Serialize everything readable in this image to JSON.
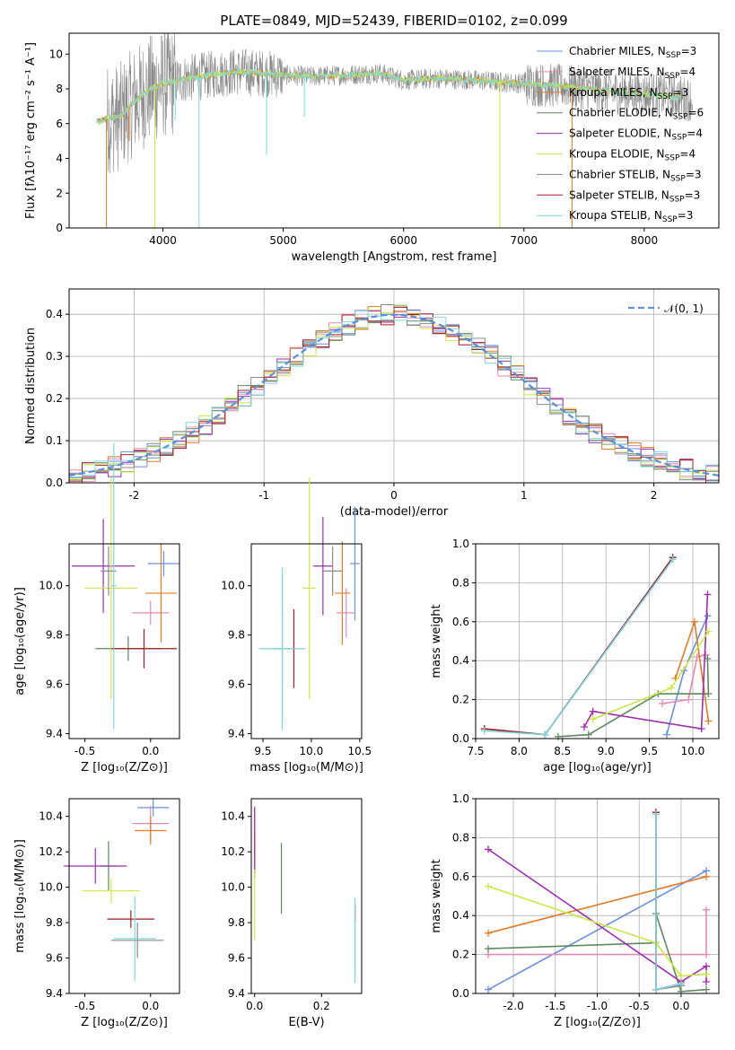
{
  "colors": {
    "Chabrier MILES": "#6a8fdc",
    "Salpeter MILES": "#e889b6",
    "Kroupa MILES": "#e07b28",
    "Chabrier ELODIE": "#5f8a5f",
    "Salpeter ELODIE": "#9a2fb0",
    "Kroupa ELODIE": "#cbe846",
    "Chabrier STELIB": "#8a8a8a",
    "Salpeter STELIB": "#a61d24",
    "Kroupa STELIB": "#7fd7dc",
    "gaussian": "#5b8fdc",
    "grid": "#b0b0b0"
  },
  "chart_data": [
    {
      "id": "spectrum",
      "type": "line",
      "title": "PLATE=0849, MJD=52439, FIBERID=0102, z=0.099",
      "xlabel": "wavelength [Angstrom, rest frame]",
      "ylabel": "Flux [fλ10⁻¹⁷ erg cm⁻² s⁻¹ A⁻¹]",
      "xlim": [
        3220,
        8620
      ],
      "ylim": [
        0,
        11.2
      ],
      "xticks": [
        4000,
        5000,
        6000,
        7000,
        8000
      ],
      "yticks": [
        0,
        2,
        4,
        6,
        8,
        10
      ],
      "grid": false,
      "legend": "right",
      "legend_entries": [
        {
          "label": "Chabrier MILES, N",
          "sub": "SSP",
          "suffix": "=3"
        },
        {
          "label": "Salpeter MILES, N",
          "sub": "SSP",
          "suffix": "=4"
        },
        {
          "label": "Kroupa MILES, N",
          "sub": "SSP",
          "suffix": "=3"
        },
        {
          "label": "Chabrier ELODIE, N",
          "sub": "SSP",
          "suffix": "=6"
        },
        {
          "label": "Salpeter ELODIE, N",
          "sub": "SSP",
          "suffix": "=4"
        },
        {
          "label": "Kroupa ELODIE, N",
          "sub": "SSP",
          "suffix": "=4"
        },
        {
          "label": "Chabrier STELIB, N",
          "sub": "SSP",
          "suffix": "=3"
        },
        {
          "label": "Salpeter STELIB, N",
          "sub": "SSP",
          "suffix": "=3"
        },
        {
          "label": "Kroupa STELIB, N",
          "sub": "SSP",
          "suffix": "=3"
        }
      ],
      "data_trend": {
        "x": [
          3450,
          3550,
          3650,
          3750,
          3900,
          4000,
          4200,
          4400,
          4600,
          4800,
          5000,
          5200,
          5500,
          5800,
          6000,
          6300,
          6600,
          7000,
          7400,
          7800,
          8200,
          8400
        ],
        "y": [
          6.1,
          6.3,
          6.4,
          7.2,
          8.0,
          8.3,
          8.6,
          8.8,
          9.0,
          8.9,
          8.8,
          8.7,
          8.8,
          8.9,
          8.5,
          8.6,
          8.5,
          8.3,
          8.1,
          7.8,
          7.6,
          7.4
        ]
      },
      "absorption_lines": [
        {
          "x": 3530,
          "color": "Kroupa MILES",
          "depth": 0
        },
        {
          "x": 3720,
          "color": "Kroupa MILES",
          "depth": 5.0
        },
        {
          "x": 3933,
          "color": "Kroupa ELODIE",
          "depth": 0
        },
        {
          "x": 4102,
          "color": "Kroupa STELIB",
          "depth": 6.2
        },
        {
          "x": 4300,
          "color": "Kroupa STELIB",
          "depth": 0
        },
        {
          "x": 4861,
          "color": "Kroupa STELIB",
          "depth": 4.2
        },
        {
          "x": 5175,
          "color": "Kroupa STELIB",
          "depth": 6.4
        },
        {
          "x": 6800,
          "color": "Kroupa ELODIE",
          "depth": 0
        },
        {
          "x": 7400,
          "color": "Kroupa MILES",
          "depth": 0
        }
      ]
    },
    {
      "id": "residuals",
      "type": "histogram",
      "xlabel": "(data-model)/error",
      "ylabel": "Normed distribution",
      "xlim": [
        -2.5,
        2.5
      ],
      "ylim": [
        0,
        0.46
      ],
      "xticks": [
        -2,
        -1,
        0,
        1,
        2
      ],
      "yticks": [
        0.0,
        0.1,
        0.2,
        0.3,
        0.4
      ],
      "grid": true,
      "legend": "top-right",
      "legend_label": "𝒩(0, 1)",
      "bin_width": 0.1,
      "series": [
        "Chabrier MILES",
        "Salpeter MILES",
        "Kroupa MILES",
        "Chabrier ELODIE",
        "Salpeter ELODIE",
        "Kroupa ELODIE",
        "Chabrier STELIB",
        "Salpeter STELIB",
        "Kroupa STELIB"
      ]
    },
    {
      "id": "age_vs_Z",
      "type": "errorbar",
      "xlabel": "Z [log₁₀(Z/Z⊙)]",
      "ylabel": "age  [log₁₀(age/yr)]",
      "xlim": [
        -0.62,
        0.22
      ],
      "ylim": [
        9.38,
        10.17
      ],
      "xticks": [
        -0.5,
        0.0
      ],
      "yticks": [
        9.4,
        9.6,
        9.8,
        10.0
      ],
      "points": [
        {
          "s": "Chabrier MILES",
          "x": 0.1,
          "xe": 0.12,
          "y": 10.09,
          "ye": 0.05
        },
        {
          "s": "Salpeter MILES",
          "x": 0.0,
          "xe": 0.14,
          "y": 9.89,
          "ye": 0.05
        },
        {
          "s": "Kroupa MILES",
          "x": 0.08,
          "xe": 0.12,
          "y": 9.97,
          "ye": 0.2
        },
        {
          "s": "Chabrier ELODIE",
          "x": -0.17,
          "xe": 0.25,
          "y": 9.745,
          "ye": 0.05
        },
        {
          "s": "Salpeter ELODIE",
          "x": -0.36,
          "xe": 0.24,
          "y": 10.08,
          "ye": 0.19
        },
        {
          "s": "Kroupa ELODIE",
          "x": -0.3,
          "xe": 0.2,
          "y": 9.99,
          "ye": 0.45
        },
        {
          "s": "Chabrier STELIB",
          "x": -0.32,
          "xe": 0.06,
          "y": 10.06,
          "ye": 0.1
        },
        {
          "s": "Salpeter STELIB",
          "x": -0.05,
          "xe": 0.25,
          "y": 9.745,
          "ye": 0.08
        },
        {
          "s": "Kroupa STELIB",
          "x": -0.28,
          "xe": 0.02,
          "y": 10.0,
          "ye": 0.58
        }
      ]
    },
    {
      "id": "age_vs_mass",
      "type": "errorbar",
      "xlabel": "mass [log₁₀(M/M⊙)]",
      "ylabel": "",
      "xlim": [
        9.38,
        10.52
      ],
      "ylim": [
        9.38,
        10.17
      ],
      "xticks": [
        9.5,
        10.0,
        10.5
      ],
      "yticks": [
        9.4,
        9.6,
        9.8,
        10.0
      ],
      "points": [
        {
          "s": "Chabrier MILES",
          "x": 10.45,
          "xe": 0.05,
          "y": 10.09,
          "ye": 0.23
        },
        {
          "s": "Salpeter MILES",
          "x": 10.36,
          "xe": 0.1,
          "y": 9.89,
          "ye": 0.1
        },
        {
          "s": "Kroupa MILES",
          "x": 10.32,
          "xe": 0.08,
          "y": 9.97,
          "ye": 0.21
        },
        {
          "s": "Chabrier ELODIE",
          "x": 9.7,
          "xe": 0.1,
          "y": 9.745,
          "ye": 0.3
        },
        {
          "s": "Salpeter ELODIE",
          "x": 10.12,
          "xe": 0.1,
          "y": 10.08,
          "ye": 0.2
        },
        {
          "s": "Kroupa ELODIE",
          "x": 9.98,
          "xe": 0.07,
          "y": 9.99,
          "ye": 0.45
        },
        {
          "s": "Chabrier STELIB",
          "x": 10.22,
          "xe": 0.1,
          "y": 10.06,
          "ye": 0.1
        },
        {
          "s": "Salpeter STELIB",
          "x": 9.82,
          "xe": 0.02,
          "y": 9.745,
          "ye": 0.16
        },
        {
          "s": "Kroupa STELIB",
          "x": 9.7,
          "xe": 0.24,
          "y": 9.745,
          "ye": 0.33
        }
      ]
    },
    {
      "id": "mass_weight_vs_age",
      "type": "line",
      "xlabel": "age  [log₁₀(age/yr)]",
      "ylabel": "mass weight",
      "xlim": [
        7.5,
        10.3
      ],
      "ylim": [
        0,
        1.0
      ],
      "xticks": [
        7.5,
        8.0,
        8.5,
        9.0,
        9.5,
        10.0
      ],
      "yticks": [
        0.0,
        0.2,
        0.4,
        0.6,
        0.8,
        1.0
      ],
      "grid": true,
      "series": [
        {
          "s": "Chabrier MILES",
          "x": [
            9.7,
            9.9,
            10.17
          ],
          "y": [
            0.02,
            0.35,
            0.63
          ]
        },
        {
          "s": "Salpeter MILES",
          "x": [
            9.65,
            9.95,
            10.05,
            10.15
          ],
          "y": [
            0.18,
            0.2,
            0.42,
            0.43
          ]
        },
        {
          "s": "Kroupa MILES",
          "x": [
            9.8,
            10.02,
            10.18
          ],
          "y": [
            0.31,
            0.6,
            0.09
          ]
        },
        {
          "s": "Chabrier ELODIE",
          "x": [
            8.45,
            8.8,
            9.6,
            10.18,
            10.17
          ],
          "y": [
            0.01,
            0.02,
            0.23,
            0.23,
            0.41
          ]
        },
        {
          "s": "Salpeter ELODIE",
          "x": [
            8.75,
            8.85,
            10.1,
            10.17
          ],
          "y": [
            0.06,
            0.14,
            0.05,
            0.74
          ]
        },
        {
          "s": "Kroupa ELODIE",
          "x": [
            8.85,
            9.75,
            10.18
          ],
          "y": [
            0.1,
            0.26,
            0.55
          ]
        },
        {
          "s": "Chabrier STELIB",
          "x": [
            7.6,
            8.3,
            9.77
          ],
          "y": [
            0.05,
            0.02,
            0.93
          ]
        },
        {
          "s": "Salpeter STELIB",
          "x": [
            7.6,
            8.3,
            9.77
          ],
          "y": [
            0.05,
            0.02,
            0.93
          ]
        },
        {
          "s": "Kroupa STELIB",
          "x": [
            7.6,
            8.3,
            9.77
          ],
          "y": [
            0.04,
            0.02,
            0.92
          ]
        }
      ]
    },
    {
      "id": "mass_vs_Z",
      "type": "errorbar",
      "xlabel": "Z [log₁₀(Z/Z⊙)]",
      "ylabel": "mass [log₁₀(M/M⊙)]",
      "xlim": [
        -0.62,
        0.22
      ],
      "ylim": [
        9.4,
        10.5
      ],
      "xticks": [
        -0.5,
        0.0
      ],
      "yticks": [
        9.4,
        9.6,
        9.8,
        10.0,
        10.2,
        10.4
      ],
      "points": [
        {
          "s": "Chabrier MILES",
          "x": 0.02,
          "xe": 0.12,
          "y": 10.45,
          "ye": 0.05
        },
        {
          "s": "Salpeter MILES",
          "x": 0.0,
          "xe": 0.14,
          "y": 10.36,
          "ye": 0.1
        },
        {
          "s": "Kroupa MILES",
          "x": 0.0,
          "xe": 0.12,
          "y": 10.32,
          "ye": 0.08
        },
        {
          "s": "Chabrier ELODIE",
          "x": -0.32,
          "xe": 0.06,
          "y": 10.12,
          "ye": 0.14
        },
        {
          "s": "Salpeter ELODIE",
          "x": -0.42,
          "xe": 0.24,
          "y": 10.12,
          "ye": 0.1
        },
        {
          "s": "Kroupa ELODIE",
          "x": -0.3,
          "xe": 0.22,
          "y": 9.98,
          "ye": 0.07
        },
        {
          "s": "Chabrier STELIB",
          "x": -0.1,
          "xe": 0.2,
          "y": 9.7,
          "ye": 0.1
        },
        {
          "s": "Salpeter STELIB",
          "x": -0.15,
          "xe": 0.18,
          "y": 9.82,
          "ye": 0.05
        },
        {
          "s": "Kroupa STELIB",
          "x": -0.12,
          "xe": 0.16,
          "y": 9.71,
          "ye": 0.24
        }
      ]
    },
    {
      "id": "mass_vs_ebv",
      "type": "errorbar",
      "xlabel": "E(B-V)",
      "ylabel": "",
      "xlim": [
        -0.01,
        0.32
      ],
      "ylim": [
        9.4,
        10.5
      ],
      "xticks": [
        0.0,
        0.2
      ],
      "yticks": [
        9.4,
        9.6,
        9.8,
        10.0,
        10.2,
        10.4
      ],
      "points": [
        {
          "s": "Chabrier MILES",
          "x": 0.0,
          "xe": 0,
          "y": 10.3,
          "ye": 0.15
        },
        {
          "s": "Salpeter MILES",
          "x": 0.0,
          "xe": 0,
          "y": 10.36,
          "ye": 0.1
        },
        {
          "s": "Kroupa MILES",
          "x": 0.0,
          "xe": 0,
          "y": 10.2,
          "ye": 0.12
        },
        {
          "s": "Chabrier ELODIE",
          "x": 0.08,
          "xe": 0,
          "y": 10.05,
          "ye": 0.2
        },
        {
          "s": "Salpeter ELODIE",
          "x": 0.0,
          "xe": 0,
          "y": 10.25,
          "ye": 0.2
        },
        {
          "s": "Kroupa ELODIE",
          "x": 0.0,
          "xe": 0,
          "y": 9.9,
          "ye": 0.2
        },
        {
          "s": "Chabrier STELIB",
          "x": 0.3,
          "xe": 0,
          "y": 9.7,
          "ye": 0.2
        },
        {
          "s": "Salpeter STELIB",
          "x": 0.3,
          "xe": 0,
          "y": 9.85,
          "ye": 0.05
        },
        {
          "s": "Kroupa STELIB",
          "x": 0.3,
          "xe": 0,
          "y": 9.7,
          "ye": 0.24
        }
      ]
    },
    {
      "id": "mass_weight_vs_Z",
      "type": "line",
      "xlabel": "Z [log₁₀(Z/Z⊙)]",
      "ylabel": "mass weight",
      "xlim": [
        -2.45,
        0.45
      ],
      "ylim": [
        0,
        1.0
      ],
      "xticks": [
        -2.0,
        -1.5,
        -1.0,
        -0.5,
        0.0
      ],
      "yticks": [
        0.0,
        0.2,
        0.4,
        0.6,
        0.8,
        1.0
      ],
      "grid": true,
      "series": [
        {
          "s": "Chabrier MILES",
          "x": [
            -2.3,
            0.3
          ],
          "y": [
            0.02,
            0.63
          ]
        },
        {
          "s": "Salpeter MILES",
          "x": [
            -2.3,
            0.3,
            0.3
          ],
          "y": [
            0.2,
            0.2,
            0.43
          ]
        },
        {
          "s": "Kroupa MILES",
          "x": [
            -2.3,
            0.3
          ],
          "y": [
            0.31,
            0.6
          ]
        },
        {
          "s": "Chabrier ELODIE",
          "x": [
            -2.3,
            -0.3,
            -0.3,
            0.0,
            0.3
          ],
          "y": [
            0.23,
            0.26,
            0.41,
            0.01,
            0.02
          ]
        },
        {
          "s": "Salpeter ELODIE",
          "x": [
            -2.3,
            0.0,
            0.3,
            0.3
          ],
          "y": [
            0.74,
            0.06,
            0.14,
            0.06
          ]
        },
        {
          "s": "Kroupa ELODIE",
          "x": [
            -2.3,
            -0.3,
            0.0,
            0.3
          ],
          "y": [
            0.55,
            0.26,
            0.09,
            0.1
          ]
        },
        {
          "s": "Chabrier STELIB",
          "x": [
            -0.3,
            -0.3,
            0.0
          ],
          "y": [
            0.93,
            0.02,
            0.04
          ]
        },
        {
          "s": "Salpeter STELIB",
          "x": [
            -0.3,
            -0.3,
            0.0
          ],
          "y": [
            0.93,
            0.02,
            0.05
          ]
        },
        {
          "s": "Kroupa STELIB",
          "x": [
            -0.3,
            -0.3,
            0.0
          ],
          "y": [
            0.92,
            0.02,
            0.05
          ]
        }
      ]
    }
  ]
}
